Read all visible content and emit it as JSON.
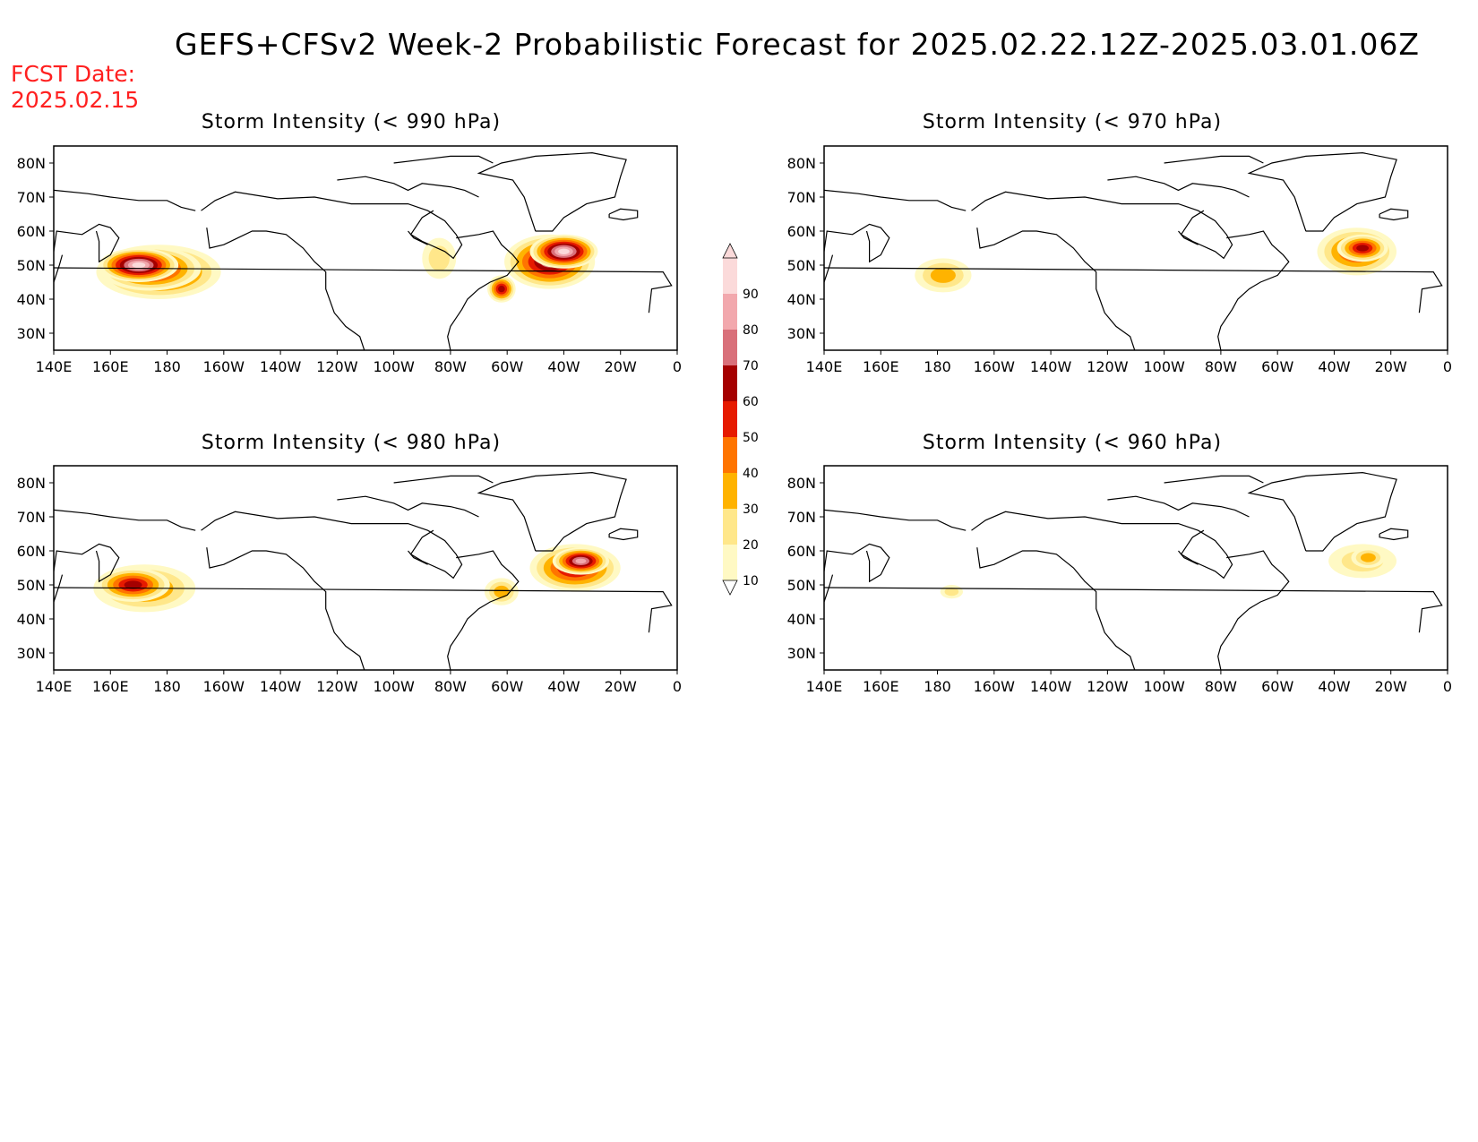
{
  "header": {
    "title": "GEFS+CFSv2 Week-2 Probabilistic Forecast for 2025.02.22.12Z-2025.03.01.06Z",
    "fcst_label": "FCST Date:",
    "fcst_date": "2025.02.15"
  },
  "axes": {
    "lon_ticks": [
      "140E",
      "160E",
      "180",
      "160W",
      "140W",
      "120W",
      "100W",
      "80W",
      "60W",
      "40W",
      "20W",
      "0"
    ],
    "lat_ticks": [
      "80N",
      "70N",
      "60N",
      "50N",
      "40N",
      "30N"
    ]
  },
  "colorbar": {
    "levels": [
      "10",
      "20",
      "30",
      "40",
      "50",
      "60",
      "70",
      "80",
      "90"
    ],
    "colors": [
      "#fff9c4",
      "#ffe78a",
      "#ffb300",
      "#ff7400",
      "#e61a00",
      "#a50000",
      "#d9707a",
      "#f2a8ad",
      "#fbdada"
    ]
  },
  "panels": [
    {
      "id": "p990",
      "title": "Storm Intensity (< 990 hPa)",
      "blobs": [
        {
          "lon": 177,
          "lat": 48,
          "rlon": 22,
          "rlat": 8,
          "level": 5
        },
        {
          "lon": 174,
          "lat": 49,
          "rlon": 18,
          "rlat": 6.5,
          "level": 6
        },
        {
          "lon": 170,
          "lat": 50,
          "rlon": 14,
          "rlat": 5,
          "level": 8
        },
        {
          "lon": -84,
          "lat": 52,
          "rlon": 6,
          "rlat": 6,
          "level": 1
        },
        {
          "lon": -45,
          "lat": 51,
          "rlon": 16,
          "rlat": 8,
          "level": 6
        },
        {
          "lon": -40,
          "lat": 54,
          "rlon": 12,
          "rlat": 5,
          "level": 8
        },
        {
          "lon": -62,
          "lat": 43,
          "rlon": 5,
          "rlat": 4,
          "level": 5
        }
      ]
    },
    {
      "id": "p970",
      "title": "Storm Intensity (< 970 hPa)",
      "blobs": [
        {
          "lon": -178,
          "lat": 47,
          "rlon": 10,
          "rlat": 5,
          "level": 2
        },
        {
          "lon": -32,
          "lat": 54,
          "rlon": 14,
          "rlat": 7,
          "level": 4
        },
        {
          "lon": -30,
          "lat": 55,
          "rlon": 9,
          "rlat": 4,
          "level": 5
        }
      ]
    },
    {
      "id": "p980",
      "title": "Storm Intensity (< 980 hPa)",
      "blobs": [
        {
          "lon": 172,
          "lat": 49,
          "rlon": 18,
          "rlat": 7,
          "level": 3
        },
        {
          "lon": 168,
          "lat": 50,
          "rlon": 13,
          "rlat": 5,
          "level": 5
        },
        {
          "lon": -36,
          "lat": 55,
          "rlon": 16,
          "rlat": 7,
          "level": 5
        },
        {
          "lon": -34,
          "lat": 57,
          "rlon": 10,
          "rlat": 4,
          "level": 7
        },
        {
          "lon": -62,
          "lat": 48,
          "rlon": 6,
          "rlat": 4,
          "level": 2
        }
      ]
    },
    {
      "id": "p960",
      "title": "Storm Intensity (< 960 hPa)",
      "blobs": [
        {
          "lon": -175,
          "lat": 48,
          "rlon": 4,
          "rlat": 2,
          "level": 1
        },
        {
          "lon": -30,
          "lat": 57,
          "rlon": 12,
          "rlat": 5,
          "level": 1
        },
        {
          "lon": -28,
          "lat": 58,
          "rlon": 6,
          "rlat": 3,
          "level": 2
        }
      ]
    }
  ]
}
